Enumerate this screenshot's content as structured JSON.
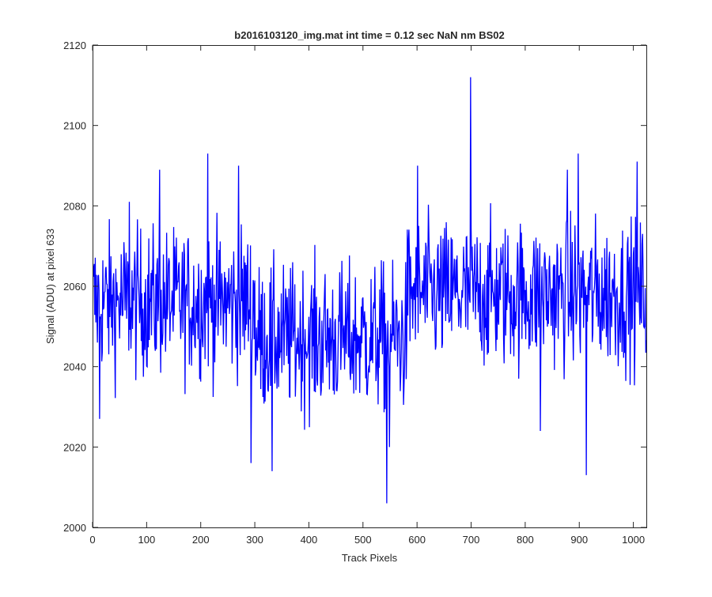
{
  "chart_data": {
    "type": "line",
    "title": "b2016103120_img.mat int time = 0.12 sec  NaN nm BS02",
    "xlabel": "Track Pixels",
    "ylabel": "Signal (ADU) at pixel 633",
    "xlim": [
      0,
      1024
    ],
    "ylim": [
      2000,
      2120
    ],
    "x_ticks": [
      0,
      100,
      200,
      300,
      400,
      500,
      600,
      700,
      800,
      900,
      1000
    ],
    "y_ticks": [
      2000,
      2020,
      2040,
      2060,
      2080,
      2100,
      2120
    ],
    "x_tick_labels": [
      "0",
      "100",
      "200",
      "300",
      "400",
      "500",
      "600",
      "700",
      "800",
      "900",
      "1000"
    ],
    "y_tick_labels": [
      "2000",
      "2020",
      "2040",
      "2060",
      "2080",
      "2100",
      "2120"
    ],
    "grid": false,
    "box": true,
    "series": [
      {
        "color": "#0000ff",
        "x_start": 1,
        "x_step": 1,
        "notable_points": [
          {
            "x": 13,
            "y": 2027
          },
          {
            "x": 68,
            "y": 2081
          },
          {
            "x": 124,
            "y": 2089
          },
          {
            "x": 213,
            "y": 2093
          },
          {
            "x": 270,
            "y": 2090
          },
          {
            "x": 293,
            "y": 2016
          },
          {
            "x": 332,
            "y": 2014
          },
          {
            "x": 544,
            "y": 2006
          },
          {
            "x": 549,
            "y": 2020
          },
          {
            "x": 601,
            "y": 2090
          },
          {
            "x": 699,
            "y": 2112
          },
          {
            "x": 828,
            "y": 2024
          },
          {
            "x": 878,
            "y": 2089
          },
          {
            "x": 898,
            "y": 2093
          },
          {
            "x": 913,
            "y": 2013
          },
          {
            "x": 1007,
            "y": 2091
          }
        ],
        "segment_means": [
          {
            "from": 1,
            "to": 300,
            "mean": 2056
          },
          {
            "from": 300,
            "to": 580,
            "mean": 2047
          },
          {
            "from": 580,
            "to": 1024,
            "mean": 2058
          }
        ],
        "noise_amplitude": 9
      }
    ]
  }
}
